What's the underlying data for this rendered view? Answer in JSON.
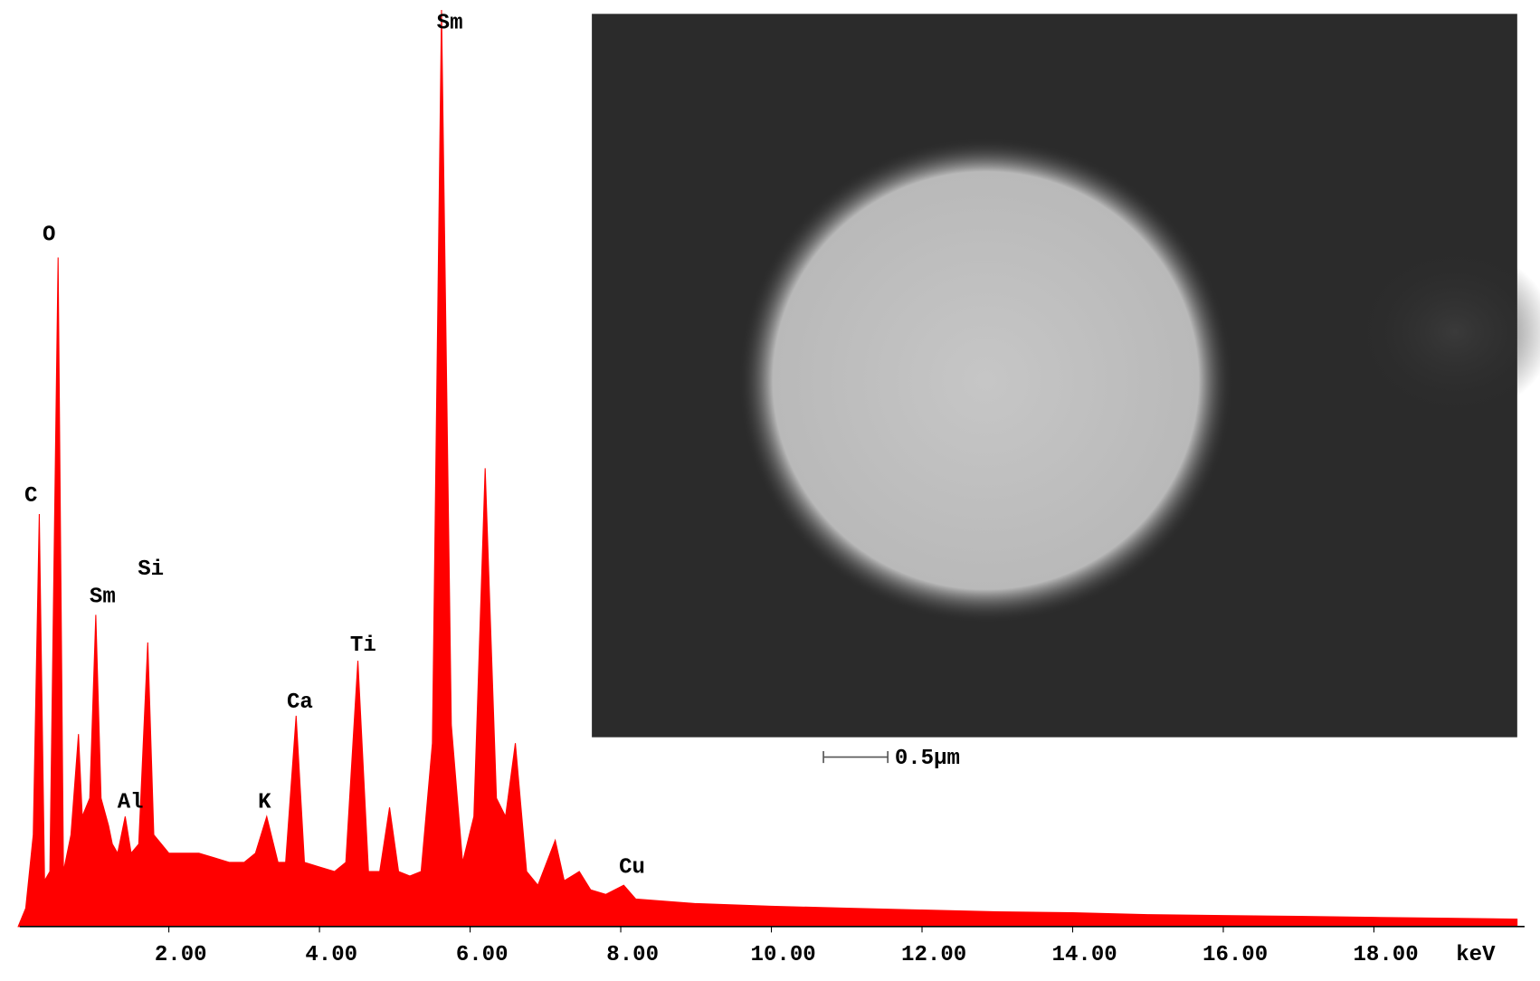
{
  "chart_data": {
    "type": "area",
    "x": [
      0.0,
      0.1,
      0.2,
      0.28,
      0.35,
      0.42,
      0.53,
      0.6,
      0.7,
      0.8,
      0.85,
      0.95,
      1.03,
      1.1,
      1.2,
      1.25,
      1.32,
      1.42,
      1.5,
      1.6,
      1.72,
      1.8,
      2.0,
      2.2,
      2.4,
      2.6,
      2.8,
      3.0,
      3.15,
      3.3,
      3.45,
      3.55,
      3.69,
      3.8,
      4.0,
      4.2,
      4.35,
      4.51,
      4.65,
      4.8,
      4.93,
      5.05,
      5.2,
      5.35,
      5.5,
      5.62,
      5.75,
      5.9,
      6.05,
      6.2,
      6.35,
      6.47,
      6.6,
      6.75,
      6.9,
      7.13,
      7.25,
      7.45,
      7.6,
      7.8,
      8.04,
      8.2,
      9.0,
      10.0,
      11.0,
      12.0,
      13.0,
      14.0,
      15.0,
      16.0,
      17.0,
      18.0,
      19.0,
      19.9
    ],
    "values": [
      0,
      2,
      10,
      45,
      5,
      6,
      73,
      6,
      10,
      21,
      12,
      14,
      34,
      14,
      11,
      9,
      8,
      12,
      8,
      9,
      31,
      10,
      8,
      8,
      8,
      7.5,
      7,
      7,
      8,
      12,
      7,
      7,
      23,
      7,
      6.5,
      6,
      7,
      29,
      6,
      6,
      13,
      6,
      5.5,
      6,
      20,
      100,
      22,
      7,
      12,
      50,
      14,
      12,
      20,
      6,
      4.5,
      9.4,
      5,
      6,
      4,
      3.5,
      4.5,
      3,
      2.5,
      2.2,
      2,
      1.8,
      1.6,
      1.5,
      1.3,
      1.2,
      1.1,
      1,
      0.9,
      0.8
    ],
    "color": "#ff0000",
    "xlim": [
      0,
      20
    ],
    "ylim": [
      0,
      100
    ],
    "xticks": [
      {
        "value": 2,
        "label": "2.00"
      },
      {
        "value": 4,
        "label": "4.00"
      },
      {
        "value": 6,
        "label": "6.00"
      },
      {
        "value": 8,
        "label": "8.00"
      },
      {
        "value": 10,
        "label": "10.00"
      },
      {
        "value": 12,
        "label": "12.00"
      },
      {
        "value": 14,
        "label": "14.00"
      },
      {
        "value": 16,
        "label": "16.00"
      },
      {
        "value": 18,
        "label": "18.00"
      }
    ],
    "x_label": "keV",
    "annotations": [
      {
        "text": "C",
        "x": 0.17,
        "y": 47
      },
      {
        "text": "O",
        "x": 0.41,
        "y": 75.5
      },
      {
        "text": "Sm",
        "x": 1.12,
        "y": 36
      },
      {
        "text": "Si",
        "x": 1.76,
        "y": 39
      },
      {
        "text": "Al",
        "x": 1.49,
        "y": 13.6
      },
      {
        "text": "K",
        "x": 3.27,
        "y": 13.6
      },
      {
        "text": "Ca",
        "x": 3.74,
        "y": 24.5
      },
      {
        "text": "Ti",
        "x": 4.58,
        "y": 30.7
      },
      {
        "text": "Sm",
        "x": 5.73,
        "y": 98.6
      },
      {
        "text": "Cu",
        "x": 8.15,
        "y": 6.5
      }
    ],
    "inset": {
      "scale_bar": "0.5µm"
    }
  }
}
